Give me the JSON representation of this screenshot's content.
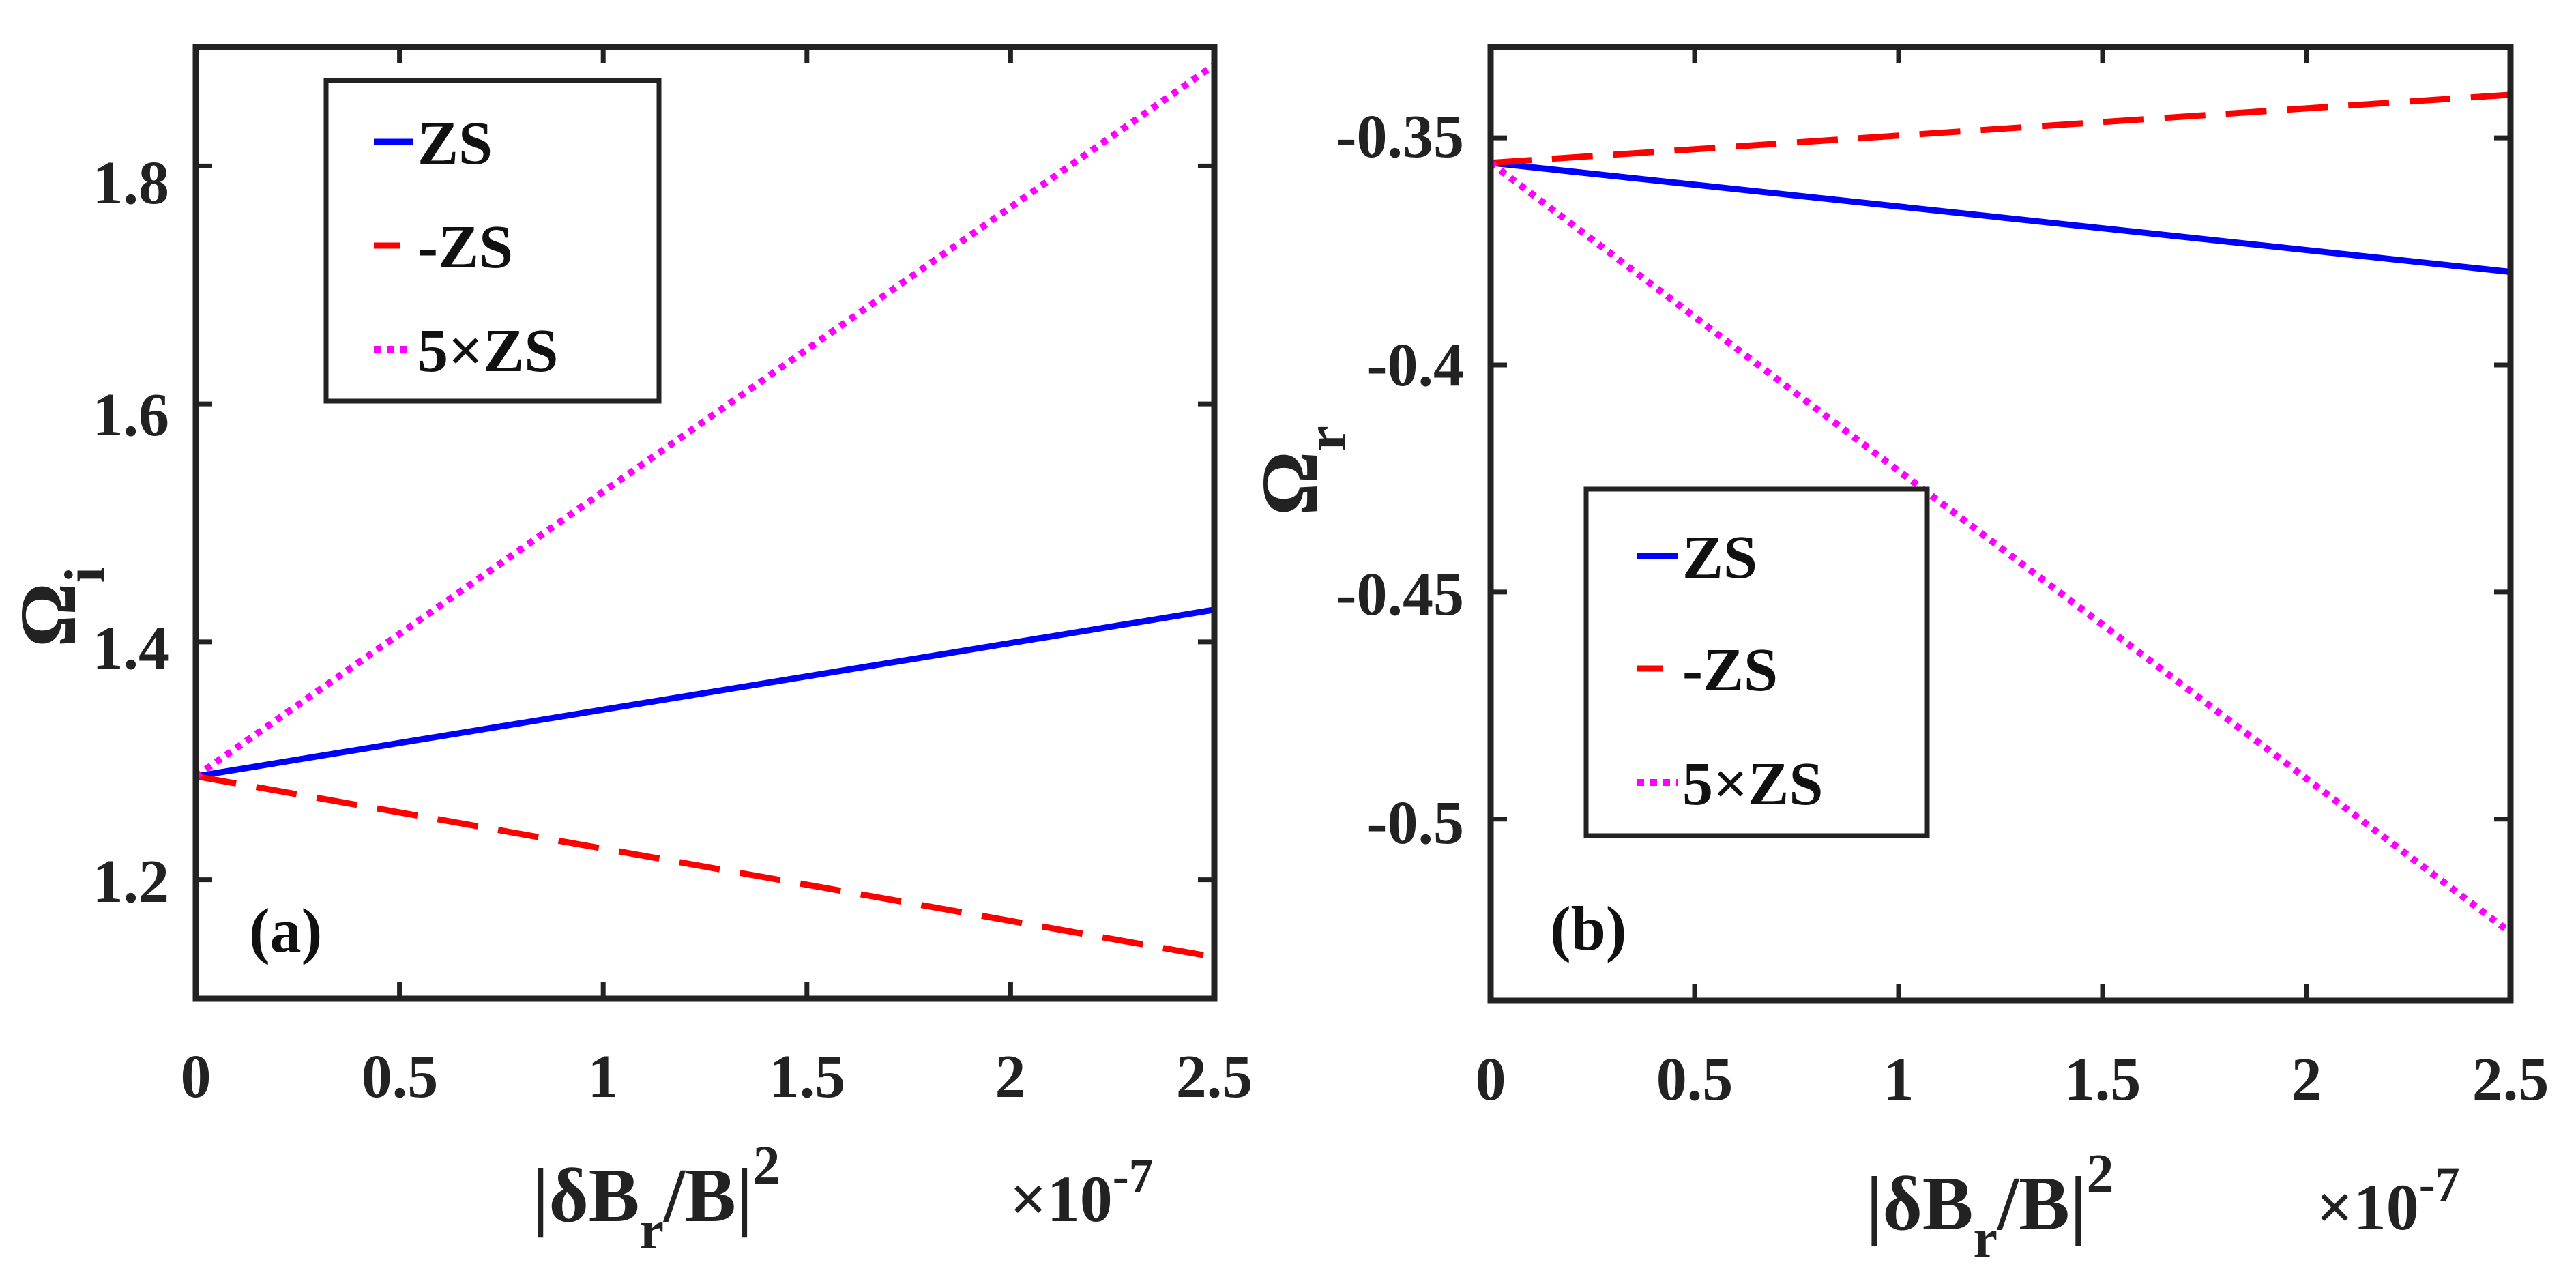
{
  "chart_data": [
    {
      "type": "line",
      "panel_label": "(a)",
      "x": [
        0,
        2.5
      ],
      "xlim": [
        0,
        2.5
      ],
      "ylim": [
        1.1,
        1.9
      ],
      "xticks": [
        0,
        0.5,
        1,
        1.5,
        2,
        2.5
      ],
      "xtick_labels": [
        "0",
        "0.5",
        "1",
        "1.5",
        "2",
        "2.5"
      ],
      "yticks": [
        1.2,
        1.4,
        1.6,
        1.8
      ],
      "ytick_labels": [
        "1.2",
        "1.4",
        "1.6",
        "1.8"
      ],
      "xlabel": {
        "pre": "|δB",
        "sub": "r",
        "post": "/B|",
        "sup": "2"
      },
      "ylabel": {
        "main": "Ω",
        "sub": "i"
      },
      "x_multiplier": {
        "times": "×10",
        "exp": "-7"
      },
      "legend_position": "top-left",
      "grid": false,
      "series": [
        {
          "name": "ZS",
          "color": "#0000ff",
          "style": "solid",
          "values": [
            1.287,
            1.427
          ]
        },
        {
          "name": "-ZS",
          "color": "#ff0000",
          "style": "dashed",
          "values": [
            1.287,
            1.135
          ]
        },
        {
          "name": "5×ZS",
          "color": "#ff00ff",
          "style": "dotted",
          "values": [
            1.287,
            1.885
          ]
        }
      ]
    },
    {
      "type": "line",
      "panel_label": "(b)",
      "x": [
        0,
        2.5
      ],
      "xlim": [
        0,
        2.5
      ],
      "ylim": [
        -0.54,
        -0.33
      ],
      "xticks": [
        0,
        0.5,
        1,
        1.5,
        2,
        2.5
      ],
      "xtick_labels": [
        "0",
        "0.5",
        "1",
        "1.5",
        "2",
        "2.5"
      ],
      "yticks": [
        -0.5,
        -0.45,
        -0.4,
        -0.35
      ],
      "ytick_labels": [
        "-0.5",
        "-0.45",
        "-0.4",
        "-0.35"
      ],
      "xlabel": {
        "pre": "|δB",
        "sub": "r",
        "post": "/B|",
        "sup": "2"
      },
      "ylabel": {
        "main": "Ω",
        "sub": "r"
      },
      "x_multiplier": {
        "times": "×10",
        "exp": "-7"
      },
      "legend_position": "center-left",
      "grid": false,
      "series": [
        {
          "name": "ZS",
          "color": "#0000ff",
          "style": "solid",
          "values": [
            -0.3555,
            -0.3795
          ]
        },
        {
          "name": "-ZS",
          "color": "#ff0000",
          "style": "dashed",
          "values": [
            -0.3555,
            -0.3405
          ]
        },
        {
          "name": "5×ZS",
          "color": "#ff00ff",
          "style": "dotted",
          "values": [
            -0.3555,
            -0.525
          ]
        }
      ]
    }
  ]
}
